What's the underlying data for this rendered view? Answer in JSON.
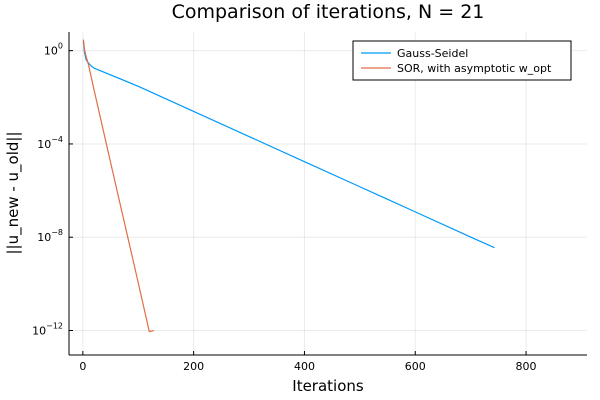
{
  "chart_data": {
    "type": "line",
    "title": "Comparison of iterations, N = 21",
    "xlabel": "Iterations",
    "ylabel": "||u_new - u_old||",
    "xlim": [
      -25,
      910
    ],
    "ylim_log10": [
      -13.05,
      0.8
    ],
    "yscale": "log",
    "grid": true,
    "legend_position": "top-right",
    "x_ticks": [
      0,
      200,
      400,
      600,
      800
    ],
    "y_ticks": [
      {
        "base": "10",
        "exp": "0",
        "value": 1
      },
      {
        "base": "10",
        "exp": "−4",
        "value": 0.0001
      },
      {
        "base": "10",
        "exp": "−8",
        "value": 1e-08
      },
      {
        "base": "10",
        "exp": "−12",
        "value": 1e-12
      }
    ],
    "series": [
      {
        "name": "Gauss-Seidel",
        "color": "#009AFA",
        "x": [
          1,
          3,
          6,
          10,
          15,
          20,
          100,
          200,
          300,
          400,
          500,
          600,
          700,
          743
        ],
        "y": [
          2.5,
          0.8,
          0.4,
          0.3,
          0.22,
          0.18,
          0.0296,
          0.00248,
          0.000208,
          1.74e-05,
          1.46e-06,
          1.22e-07,
          1.02e-08,
          3.55e-09
        ]
      },
      {
        "name": "SOR, with asymptotic w_opt",
        "color": "#E26F46",
        "x": [
          1,
          3,
          6,
          10,
          20,
          40,
          60,
          80,
          100,
          120,
          128
        ],
        "y": [
          3.0,
          1.1,
          0.55,
          0.26,
          0.022,
          0.00018,
          1.5e-06,
          1.3e-08,
          1.1e-10,
          8.9e-13,
          1e-12
        ]
      }
    ]
  }
}
